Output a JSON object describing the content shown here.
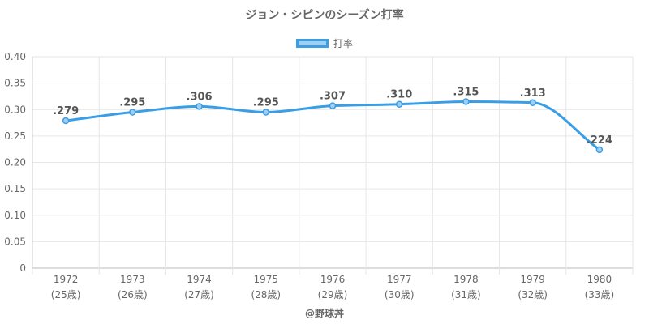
{
  "chart_data": {
    "type": "line",
    "title": "ジョン・シピンのシーズン打率",
    "categories": [
      "1972",
      "1973",
      "1974",
      "1975",
      "1976",
      "1977",
      "1978",
      "1979",
      "1980"
    ],
    "category_sublabels": [
      "(25歳)",
      "(26歳)",
      "(27歳)",
      "(28歳)",
      "(29歳)",
      "(30歳)",
      "(31歳)",
      "(32歳)",
      "(33歳)"
    ],
    "series": [
      {
        "name": "打率",
        "values": [
          0.279,
          0.295,
          0.306,
          0.295,
          0.307,
          0.31,
          0.315,
          0.313,
          0.224
        ],
        "labels": [
          ".279",
          ".295",
          ".306",
          ".295",
          ".307",
          ".310",
          ".315",
          ".313",
          ".224"
        ],
        "color": "#3a9ee6",
        "fill_color": "#9fcff2"
      }
    ],
    "ylim": [
      0,
      0.4
    ],
    "y_ticks": [
      0,
      0.05,
      0.1,
      0.15,
      0.2,
      0.25,
      0.3,
      0.35,
      0.4
    ],
    "y_tick_labels": [
      "0",
      "0.05",
      "0.10",
      "0.15",
      "0.20",
      "0.25",
      "0.30",
      "0.35",
      "0.40"
    ],
    "grid": true,
    "legend_position": "top-center",
    "smooth": true
  },
  "credit": "@野球丼"
}
